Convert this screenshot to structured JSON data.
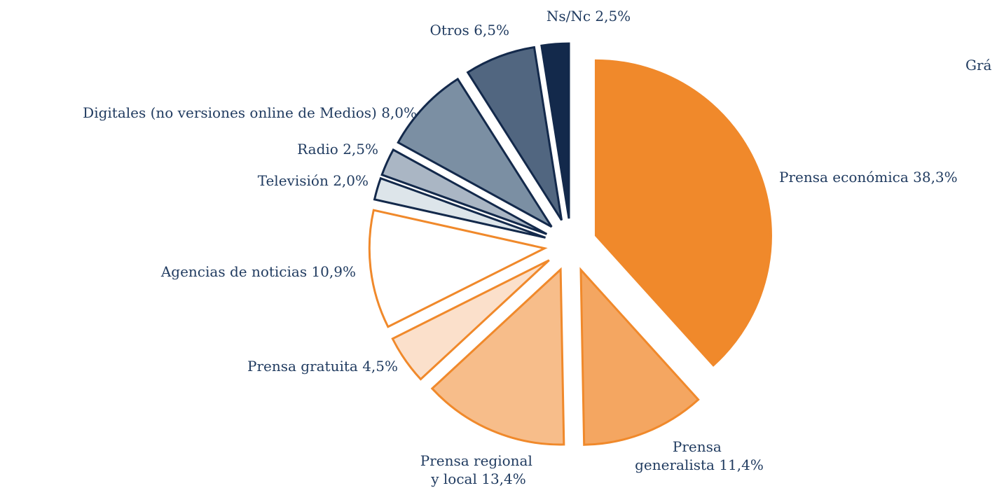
{
  "chart_data": {
    "type": "pie",
    "title": "Grá",
    "categories": [
      "Prensa económica",
      "Prensa generalista",
      "Prensa regional y local",
      "Prensa gratuita",
      "Agencias de noticias",
      "Televisión",
      "Radio",
      "Digitales (no versiones online de Medios)",
      "Otros",
      "Ns/Nc"
    ],
    "values": [
      38.3,
      11.4,
      13.4,
      4.5,
      10.9,
      2.0,
      2.5,
      8.0,
      6.5,
      2.5
    ],
    "value_labels": [
      "38,3%",
      "11,4%",
      "13,4%",
      "4,5%",
      "10,9%",
      "2,0%",
      "2,5%",
      "8,0%",
      "6,5%",
      "2,5%"
    ],
    "colors": [
      "#f0892b",
      "#f4a661",
      "#f7bd8a",
      "#fbe0cb",
      "#ffffff",
      "#dde5ea",
      "#aab6c4",
      "#7b8fa3",
      "#516680",
      "#13294b"
    ]
  }
}
